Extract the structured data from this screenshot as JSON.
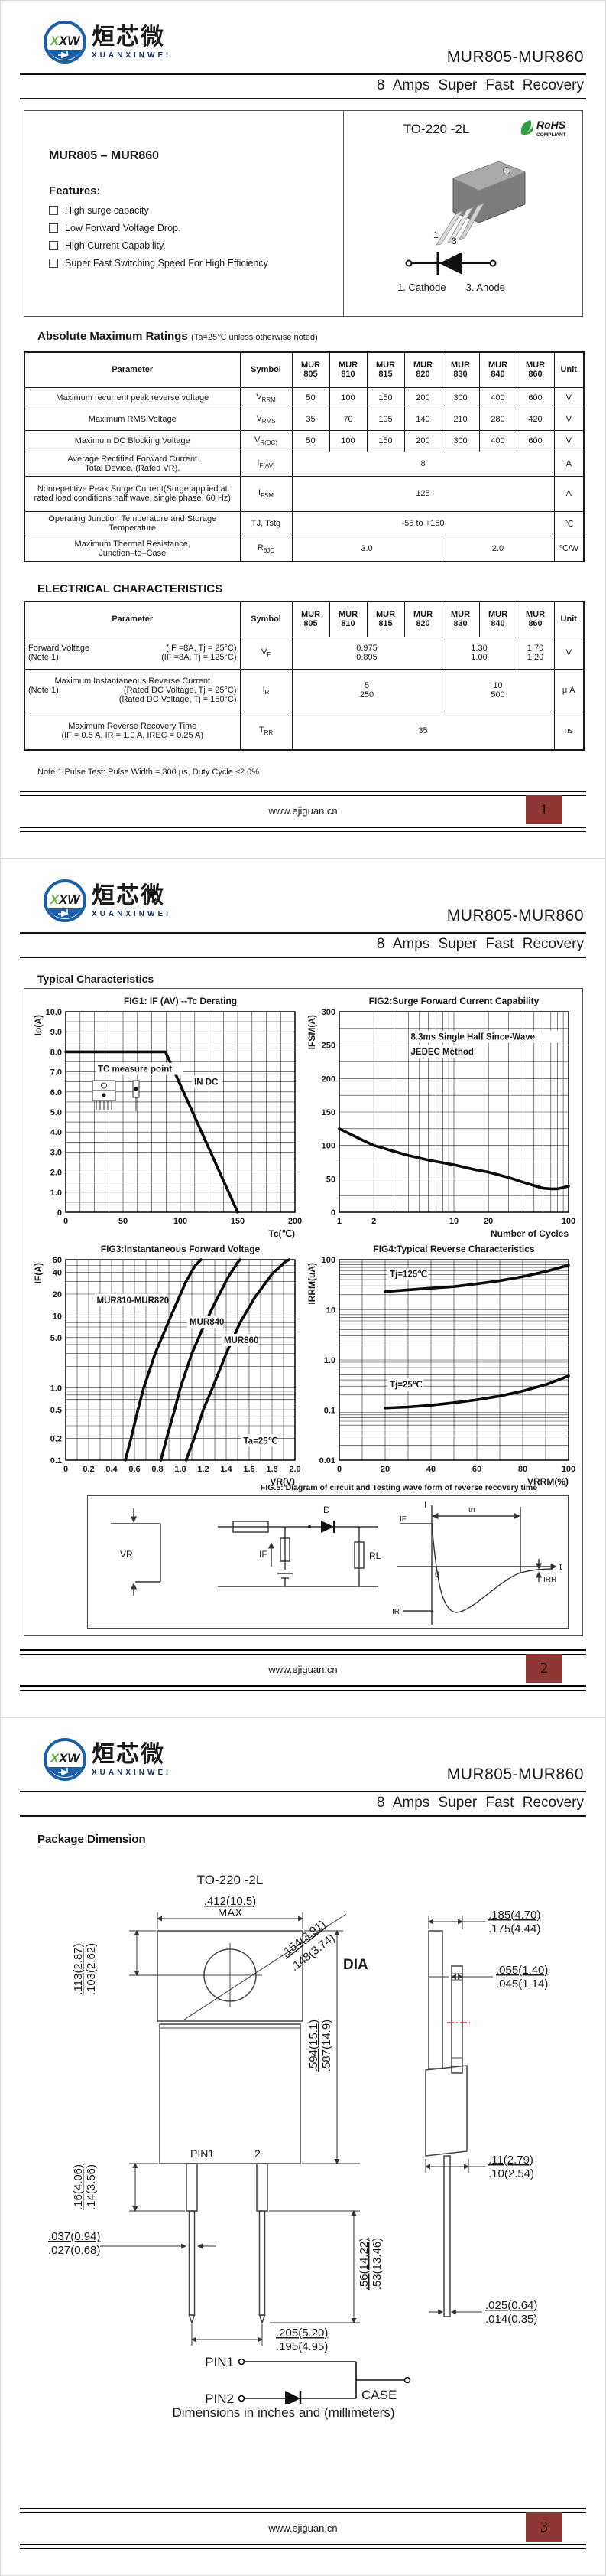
{
  "header": {
    "logo_monogram": "XXW",
    "logo_text_cn": "烜芯微",
    "logo_text_en": "XUANXINWEI",
    "part_range": "MUR805-MUR860",
    "subtitle": "8 Amps Super Fast Recovery"
  },
  "footer": {
    "url": "www.ejiguan.cn"
  },
  "models": [
    {
      "l1": "MUR",
      "l2": "805"
    },
    {
      "l1": "MUR",
      "l2": "810"
    },
    {
      "l1": "MUR",
      "l2": "815"
    },
    {
      "l1": "MUR",
      "l2": "820"
    },
    {
      "l1": "MUR",
      "l2": "830"
    },
    {
      "l1": "MUR",
      "l2": "840"
    },
    {
      "l1": "MUR",
      "l2": "860"
    }
  ],
  "page1": {
    "page_no": "1",
    "intro": {
      "part_title": "MUR805 – MUR860",
      "features_title": "Features:",
      "features": [
        "High surge capacity",
        "Low Forward Voltage Drop.",
        "High Current Capability.",
        "Super Fast Switching Speed For High Efficiency"
      ],
      "package_name": "TO-220 -2L",
      "rohs_l1": "RoHS",
      "rohs_l2": "COMPLIANT",
      "pin1_label": "1",
      "pin3_label": "3",
      "pin_caption_1": "1. Cathode",
      "pin_caption_3": "3. Anode"
    },
    "amr": {
      "title": "Absolute Maximum Ratings",
      "title_note": "(Ta=25℃ unless otherwise noted)",
      "col_param": "Parameter",
      "col_symbol": "Symbol",
      "col_unit": "Unit",
      "rows": [
        {
          "param": "Maximum recurrent peak reverse voltage",
          "sym": "V",
          "sub": "RRM",
          "values": [
            "50",
            "100",
            "150",
            "200",
            "300",
            "400",
            "600"
          ],
          "unit": "V"
        },
        {
          "param": "Maximum RMS Voltage",
          "sym": "V",
          "sub": "RMS",
          "values": [
            "35",
            "70",
            "105",
            "140",
            "210",
            "280",
            "420"
          ],
          "unit": "V"
        },
        {
          "param": "Maximum DC Blocking Voltage",
          "sym": "V",
          "sub": "R(DC)",
          "values": [
            "50",
            "100",
            "150",
            "200",
            "300",
            "400",
            "600"
          ],
          "unit": "V"
        },
        {
          "param_l1": "Average Rectified Forward Current",
          "param_l2": "Total Device, (Rated VR),",
          "sym": "I",
          "sub": "F(AV)",
          "value_span": "8",
          "unit": "A"
        },
        {
          "param": "Nonrepetitive Peak Surge Current(Surge applied at rated load conditions half wave, single phase, 60 Hz)",
          "sym": "I",
          "sub": "FSM",
          "value_span": "125",
          "unit": "A"
        },
        {
          "param": "Operating Junction Temperature and Storage Temperature",
          "sym": "TJ, Tstg",
          "sub": "",
          "value_span": "-55 to +150",
          "unit": "℃"
        },
        {
          "param_l1": "Maximum Thermal Resistance,",
          "param_l2": "Junction–to–Case",
          "sym": "R",
          "sub": "θJC",
          "value_left": "3.0",
          "value_right": "2.0",
          "unit": "℃/W"
        }
      ]
    },
    "ec": {
      "title": "ELECTRICAL CHARACTERISTICS",
      "rows": [
        {
          "p1l": "Forward Voltage",
          "p1r": "(IF =8A, Tj = 25°C)",
          "p2l": "(Note 1)",
          "p2r": "(IF =8A, Tj = 125°C)",
          "sym": "V",
          "sub": "F",
          "g1a": "0.975",
          "g1b": "0.895",
          "g2a": "1.30",
          "g2b": "1.00",
          "g3a": "1.70",
          "g3b": "1.20",
          "unit": "V"
        },
        {
          "p1": "Maximum Instantaneous Reverse Current",
          "p2l": "(Note 1)",
          "p2r": "(Rated DC Voltage, Tj = 25°C)",
          "p3r": "(Rated DC Voltage, Tj = 150°C)",
          "sym": "I",
          "sub": "R",
          "g1a": "5",
          "g1b": "250",
          "g2a": "10",
          "g2b": "500",
          "unit": "μ A"
        },
        {
          "p1": "Maximum Reverse Recovery Time",
          "p2": "(IF = 0.5 A, IR = 1.0 A, IREC = 0.25 A)",
          "sym": "T",
          "sub": "RR",
          "value_span": "35",
          "unit": "ns"
        }
      ],
      "note": "Note 1.Pulse Test: Pulse Width = 300 μs, Duty Cycle ≤2.0%"
    }
  },
  "page2": {
    "page_no": "2",
    "section_title": "Typical Characteristics",
    "fig5": {
      "caption": "FIG.5: Diagram of circuit and Testing wave form of reverse recovery time",
      "vr": "VR",
      "d": "D",
      "if_c": "IF",
      "rl": "RL",
      "i": "I",
      "if_w": "IF",
      "trr": "trr",
      "t": "t",
      "zero": "0",
      "ir": "IR",
      "irr": "IRR"
    }
  },
  "chart_data": [
    {
      "el": "fig1",
      "type": "line",
      "title": "FIG1: IF (AV) --Tc  Derating",
      "xlabel": "Tc(℃)",
      "ylabel": "Io(A)",
      "x": {
        "min": 0,
        "max": 200,
        "minor": 12.5,
        "ticks": [
          {
            "v": 0,
            "l": "0"
          },
          {
            "v": 50,
            "l": "50"
          },
          {
            "v": 100,
            "l": "100"
          },
          {
            "v": 150,
            "l": "150"
          },
          {
            "v": 200,
            "l": "200"
          }
        ]
      },
      "y": {
        "min": 0,
        "max": 10,
        "minor": 0.5,
        "ticks": [
          {
            "v": 0,
            "l": "0"
          },
          {
            "v": 1,
            "l": "1.0"
          },
          {
            "v": 2,
            "l": "2.0"
          },
          {
            "v": 3,
            "l": "3.0"
          },
          {
            "v": 4,
            "l": "4.0"
          },
          {
            "v": 5,
            "l": "5.0"
          },
          {
            "v": 6,
            "l": "6.0"
          },
          {
            "v": 7,
            "l": "7.0"
          },
          {
            "v": 8,
            "l": "8.0"
          },
          {
            "v": 9,
            "l": "9.0"
          },
          {
            "v": 10,
            "l": "10.0"
          }
        ]
      },
      "series": [
        {
          "name": "IF(AV) derating",
          "points": [
            [
              0,
              8
            ],
            [
              87,
              8
            ],
            [
              150,
              0
            ]
          ]
        }
      ],
      "ann": [
        {
          "t": "TC measure point",
          "x": 28,
          "y": 7.0,
          "bg": 1
        },
        {
          "t": "IN DC",
          "x": 112,
          "y": 6.35,
          "bg": 1
        }
      ]
    },
    {
      "el": "fig2",
      "type": "line",
      "title": "FIG2:Surge Forward Current Capability",
      "xlabel": "Number of Cycles",
      "ylabel": "IFSM(A)",
      "x": {
        "min": 1,
        "max": 100,
        "log": true,
        "ticks": [
          {
            "v": 1,
            "l": "1"
          },
          {
            "v": 2,
            "l": "2"
          },
          {
            "v": 10,
            "l": "10"
          },
          {
            "v": 20,
            "l": "20"
          },
          {
            "v": 100,
            "l": "100"
          }
        ]
      },
      "y": {
        "min": 0,
        "max": 300,
        "minor": 25,
        "ticks": [
          {
            "v": 0,
            "l": "0"
          },
          {
            "v": 50,
            "l": "50"
          },
          {
            "v": 100,
            "l": "100"
          },
          {
            "v": 150,
            "l": "150"
          },
          {
            "v": 200,
            "l": "200"
          },
          {
            "v": 250,
            "l": "250"
          },
          {
            "v": 300,
            "l": "300"
          }
        ]
      },
      "series": [
        {
          "name": "surge current",
          "points": [
            [
              1,
              125
            ],
            [
              1.5,
              110
            ],
            [
              2,
              100
            ],
            [
              3,
              91
            ],
            [
              4,
              85
            ],
            [
              6,
              78
            ],
            [
              8,
              74
            ],
            [
              10,
              71
            ],
            [
              15,
              64
            ],
            [
              20,
              60
            ],
            [
              30,
              52
            ],
            [
              40,
              45
            ],
            [
              50,
              40
            ],
            [
              60,
              36
            ],
            [
              70,
              35
            ],
            [
              80,
              35
            ],
            [
              90,
              37
            ],
            [
              100,
              39
            ]
          ]
        }
      ],
      "ann": [
        {
          "t": "8.3ms Single Half Since-Wave",
          "x": 4.2,
          "y": 258,
          "bg": 1
        },
        {
          "t": "JEDEC Method",
          "x": 4.2,
          "y": 236,
          "bg": 1
        }
      ]
    },
    {
      "el": "fig3",
      "type": "line",
      "title": "FIG3:Instantaneous Forward Voltage",
      "xlabel": "VR(V)",
      "ylabel": "IF(A)",
      "x": {
        "min": 0,
        "max": 2,
        "minor": 0.1,
        "ticks": [
          {
            "v": 0,
            "l": "0"
          },
          {
            "v": 0.2,
            "l": "0.2"
          },
          {
            "v": 0.4,
            "l": "0.4"
          },
          {
            "v": 0.6,
            "l": "0.6"
          },
          {
            "v": 0.8,
            "l": "0.8"
          },
          {
            "v": 1.0,
            "l": "1.0"
          },
          {
            "v": 1.2,
            "l": "1.2"
          },
          {
            "v": 1.4,
            "l": "1.4"
          },
          {
            "v": 1.6,
            "l": "1.6"
          },
          {
            "v": 1.8,
            "l": "1.8"
          },
          {
            "v": 2.0,
            "l": "2.0"
          }
        ]
      },
      "y": {
        "min": 0.1,
        "max": 60,
        "log": true,
        "ticks": [
          {
            "v": 0.1,
            "l": "0.1"
          },
          {
            "v": 0.2,
            "l": "0.2"
          },
          {
            "v": 0.5,
            "l": "0.5"
          },
          {
            "v": 1,
            "l": "1.0"
          },
          {
            "v": 5,
            "l": "5.0"
          },
          {
            "v": 10,
            "l": "10"
          },
          {
            "v": 20,
            "l": "20"
          },
          {
            "v": 40,
            "l": "40"
          },
          {
            "v": 60,
            "l": "60"
          }
        ]
      },
      "series": [
        {
          "name": "MUR810-MUR820",
          "points": [
            [
              0.52,
              0.1
            ],
            [
              0.57,
              0.2
            ],
            [
              0.63,
              0.5
            ],
            [
              0.68,
              1.0
            ],
            [
              0.78,
              3
            ],
            [
              0.86,
              6
            ],
            [
              0.95,
              13
            ],
            [
              1.05,
              30
            ],
            [
              1.13,
              50
            ],
            [
              1.18,
              60
            ]
          ]
        },
        {
          "name": "MUR840",
          "points": [
            [
              0.83,
              0.1
            ],
            [
              0.88,
              0.2
            ],
            [
              0.95,
              0.5
            ],
            [
              1.0,
              1.0
            ],
            [
              1.1,
              3
            ],
            [
              1.2,
              7
            ],
            [
              1.3,
              15
            ],
            [
              1.42,
              35
            ],
            [
              1.5,
              55
            ],
            [
              1.52,
              60
            ]
          ]
        },
        {
          "name": "MUR860",
          "points": [
            [
              1.05,
              0.1
            ],
            [
              1.12,
              0.2
            ],
            [
              1.2,
              0.5
            ],
            [
              1.28,
              1.0
            ],
            [
              1.4,
              3
            ],
            [
              1.52,
              8
            ],
            [
              1.65,
              18
            ],
            [
              1.8,
              38
            ],
            [
              1.92,
              57
            ],
            [
              1.95,
              60
            ]
          ]
        }
      ],
      "ann": [
        {
          "t": "MUR810-MUR820",
          "x": 0.27,
          "y": 15,
          "bg": 1
        },
        {
          "t": "MUR840",
          "x": 1.08,
          "y": 7.5,
          "bg": 1
        },
        {
          "t": "MUR860",
          "x": 1.38,
          "y": 4.2,
          "bg": 1
        },
        {
          "t": "Ta=25℃",
          "x": 1.55,
          "y": 0.17,
          "bg": 1
        }
      ]
    },
    {
      "el": "fig4",
      "type": "line",
      "title": "FIG4:Typical Reverse Characteristics",
      "xlabel": "VRRM(%)",
      "ylabel": "IRRM(uA)",
      "x": {
        "min": 0,
        "max": 100,
        "minor": 10,
        "ticks": [
          {
            "v": 0,
            "l": "0"
          },
          {
            "v": 20,
            "l": "20"
          },
          {
            "v": 40,
            "l": "40"
          },
          {
            "v": 60,
            "l": "60"
          },
          {
            "v": 80,
            "l": "80"
          },
          {
            "v": 100,
            "l": "100"
          }
        ]
      },
      "y": {
        "min": 0.01,
        "max": 100,
        "log": true,
        "ticks": [
          {
            "v": 0.01,
            "l": "0.01"
          },
          {
            "v": 0.1,
            "l": "0.1"
          },
          {
            "v": 1,
            "l": "1.0"
          },
          {
            "v": 10,
            "l": "10"
          },
          {
            "v": 100,
            "l": "100"
          }
        ]
      },
      "series": [
        {
          "name": "Tj=125℃",
          "points": [
            [
              20,
              23
            ],
            [
              30,
              25
            ],
            [
              40,
              27
            ],
            [
              50,
              29
            ],
            [
              60,
              33
            ],
            [
              70,
              38
            ],
            [
              80,
              46
            ],
            [
              90,
              58
            ],
            [
              100,
              78
            ]
          ]
        },
        {
          "name": "Tj=25℃",
          "points": [
            [
              20,
              0.11
            ],
            [
              30,
              0.115
            ],
            [
              40,
              0.125
            ],
            [
              50,
              0.14
            ],
            [
              60,
              0.16
            ],
            [
              70,
              0.19
            ],
            [
              80,
              0.24
            ],
            [
              90,
              0.32
            ],
            [
              100,
              0.48
            ]
          ]
        }
      ],
      "ann": [
        {
          "t": "Tj=125℃",
          "x": 22,
          "y": 45,
          "bg": 1
        },
        {
          "t": "Tj=25℃",
          "x": 22,
          "y": 0.28,
          "bg": 1
        }
      ]
    }
  ],
  "page3": {
    "page_no": "3",
    "section_title": "Package Dimension",
    "package_name": "TO-220 -2L",
    "front_dims": {
      "hole_offset_1": ".113(2.87)",
      "hole_offset_2": ".103(2.62)",
      "width_1": ".412(10.5)",
      "width_2": "MAX",
      "dia_1": ".154(3.91)",
      "dia_2": ".148(3.74)",
      "dia_label": "DIA",
      "shoulder_1": ".16(4.06)",
      "shoulder_2": ".14(3.56)",
      "height_1": ".594(15.1)",
      "height_2": ".587(14.9)",
      "pin_w_1": ".037(0.94)",
      "pin_w_2": ".027(0.68)",
      "pin_len_1": ".56(14.22)",
      "pin_len_2": ".53(13.46)",
      "pitch_1": ".205(5.20)",
      "pitch_2": ".195(4.95)",
      "pin_marks": "PIN1",
      "pin_marks_2": "2"
    },
    "side_dims": {
      "th_1": ".185(4.70)",
      "th_2": ".175(4.44)",
      "tab_1": ".055(1.40)",
      "tab_2": ".045(1.14)",
      "body_1": ".11(2.79)",
      "body_2": ".10(2.54)",
      "lead_1": ".025(0.64)",
      "lead_2": ".014(0.35)"
    },
    "schematic": {
      "pin1": "PIN1",
      "pin2": "PIN2",
      "case": "CASE"
    },
    "caption": "Dimensions in inches and (millimeters)"
  }
}
